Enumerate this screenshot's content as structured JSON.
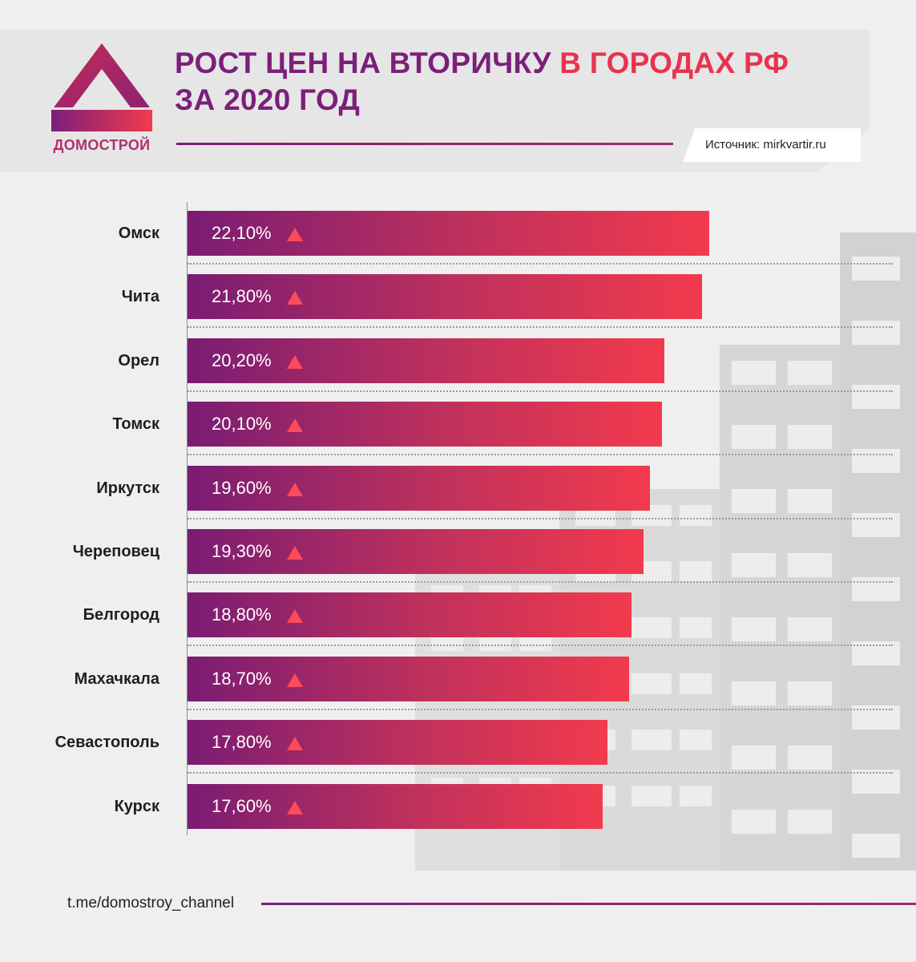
{
  "brand": {
    "name": "ДОМОСТРОЙ",
    "colors": {
      "purple": "#7b1f7a",
      "red": "#f23a4d",
      "accent_up": "#ff4a5a"
    }
  },
  "header": {
    "title_line1_a": "РОСТ ЦЕН НА ВТОРИЧКУ ",
    "title_line1_b": "В ГОРОДАХ РФ",
    "title_line2": "ЗА 2020 ГОД",
    "source": "Источник: mirkvartir.ru"
  },
  "footer": {
    "link": "t.me/domostroy_channel"
  },
  "chart_data": {
    "type": "bar",
    "orientation": "horizontal",
    "title": "РОСТ ЦЕН НА ВТОРИЧКУ В ГОРОДАХ РФ ЗА 2020 ГОД",
    "categories": [
      "Омск",
      "Чита",
      "Орел",
      "Томск",
      "Иркутск",
      "Череповец",
      "Белгород",
      "Махачкала",
      "Севастополь",
      "Курск"
    ],
    "values": [
      22.1,
      21.8,
      20.2,
      20.1,
      19.6,
      19.3,
      18.8,
      18.7,
      17.8,
      17.6
    ],
    "value_labels": [
      "22,10%",
      "21,80%",
      "20,20%",
      "20,10%",
      "19,60%",
      "19,30%",
      "18,80%",
      "18,70%",
      "17,80%",
      "17,60%"
    ],
    "unit": "%",
    "trend_icon": "triangle-up-icon",
    "xlabel": "",
    "ylabel": "",
    "grid": false,
    "legend": "none"
  }
}
